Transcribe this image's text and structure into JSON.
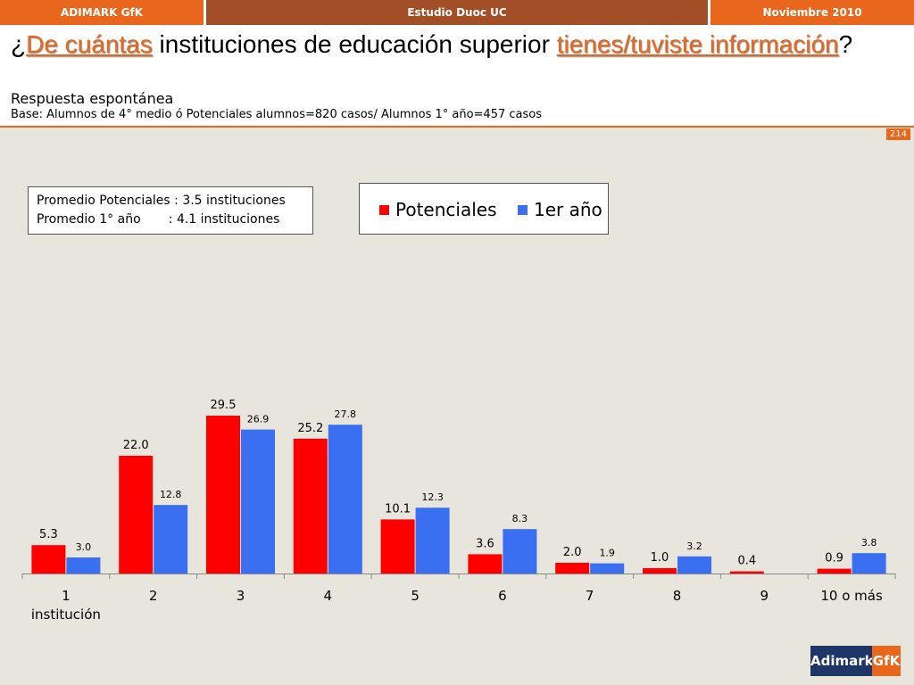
{
  "topbar": {
    "left": "ADIMARK GfK",
    "center": "Estudio Duoc UC",
    "right": "Noviembre 2010"
  },
  "header": {
    "title_parts": {
      "q_open": "¿",
      "hl1": "De cuántas",
      "plain": " instituciones de educación superior ",
      "hl2": "tienes/tuviste información",
      "q_close": "?"
    },
    "subtitle": "Respuesta espontánea",
    "base": "Base: Alumnos de 4° medio ó Potenciales alumnos=820 casos/ Alumnos 1° año=457 casos",
    "page_number": "214"
  },
  "averages": {
    "text": "Promedio Potenciales : 3.5 instituciones\nPromedio 1° año       : 4.1 instituciones"
  },
  "colors": {
    "potenciales": "#ff0000",
    "primer_ano": "#3a6ff2",
    "accent": "#e8671c",
    "bar_dark": "#a24f27",
    "logo_navy": "#1d3567"
  },
  "chart_data": {
    "type": "bar",
    "categories": [
      "1\ninstitución",
      "2",
      "3",
      "4",
      "5",
      "6",
      "7",
      "8",
      "9",
      "10 o más"
    ],
    "series": [
      {
        "name": "Potenciales",
        "values": [
          5.3,
          22.0,
          29.5,
          25.2,
          10.1,
          3.6,
          2.0,
          1.0,
          0.4,
          0.9
        ]
      },
      {
        "name": "1er año",
        "values": [
          3.0,
          12.8,
          26.9,
          27.8,
          12.3,
          8.3,
          1.9,
          3.2,
          null,
          3.8
        ]
      }
    ],
    "ylim": [
      0,
      30
    ],
    "grid": false,
    "legend": "top"
  },
  "logo": {
    "left": "Adimark",
    "right": "GfK"
  }
}
